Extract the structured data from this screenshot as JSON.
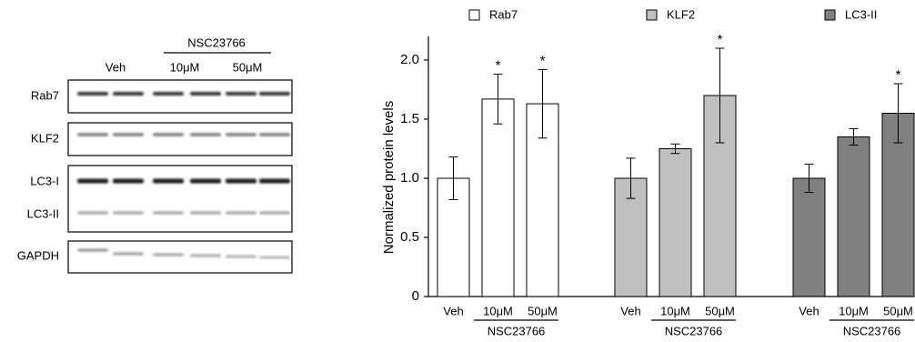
{
  "blot": {
    "column_labels": {
      "control": "Veh",
      "treatment": "NSC23766",
      "doses": [
        "10μM",
        "50μM"
      ]
    },
    "row_labels": [
      "Rab7",
      "KLF2",
      "LC3-I",
      "LC3-II",
      "GAPDH"
    ]
  },
  "chart_data": {
    "type": "bar",
    "y_label": "Normalized protein levels",
    "categories": [
      "Veh",
      "10μM",
      "50μM"
    ],
    "group_label": "NSC23766",
    "series": [
      {
        "name": "Rab7",
        "color": "#ffffff",
        "values": [
          1.0,
          1.67,
          1.63
        ],
        "errors": [
          0.18,
          0.21,
          0.29
        ],
        "stars": [
          null,
          "*",
          "*"
        ]
      },
      {
        "name": "KLF2",
        "color": "#c0c0c0",
        "values": [
          1.0,
          1.25,
          1.7
        ],
        "errors": [
          0.17,
          0.04,
          0.4
        ],
        "stars": [
          null,
          null,
          "*"
        ]
      },
      {
        "name": "LC3-II",
        "color": "#808080",
        "values": [
          1.0,
          1.35,
          1.55
        ],
        "errors": [
          0.12,
          0.07,
          0.25
        ],
        "stars": [
          null,
          null,
          "*"
        ]
      }
    ],
    "ylim": [
      0,
      2.2
    ],
    "yticks": [
      0,
      0.5,
      {
        "value": 1.0,
        "label": "1.0"
      },
      1.5,
      {
        "value": 2.0,
        "label": "2.0"
      }
    ]
  }
}
